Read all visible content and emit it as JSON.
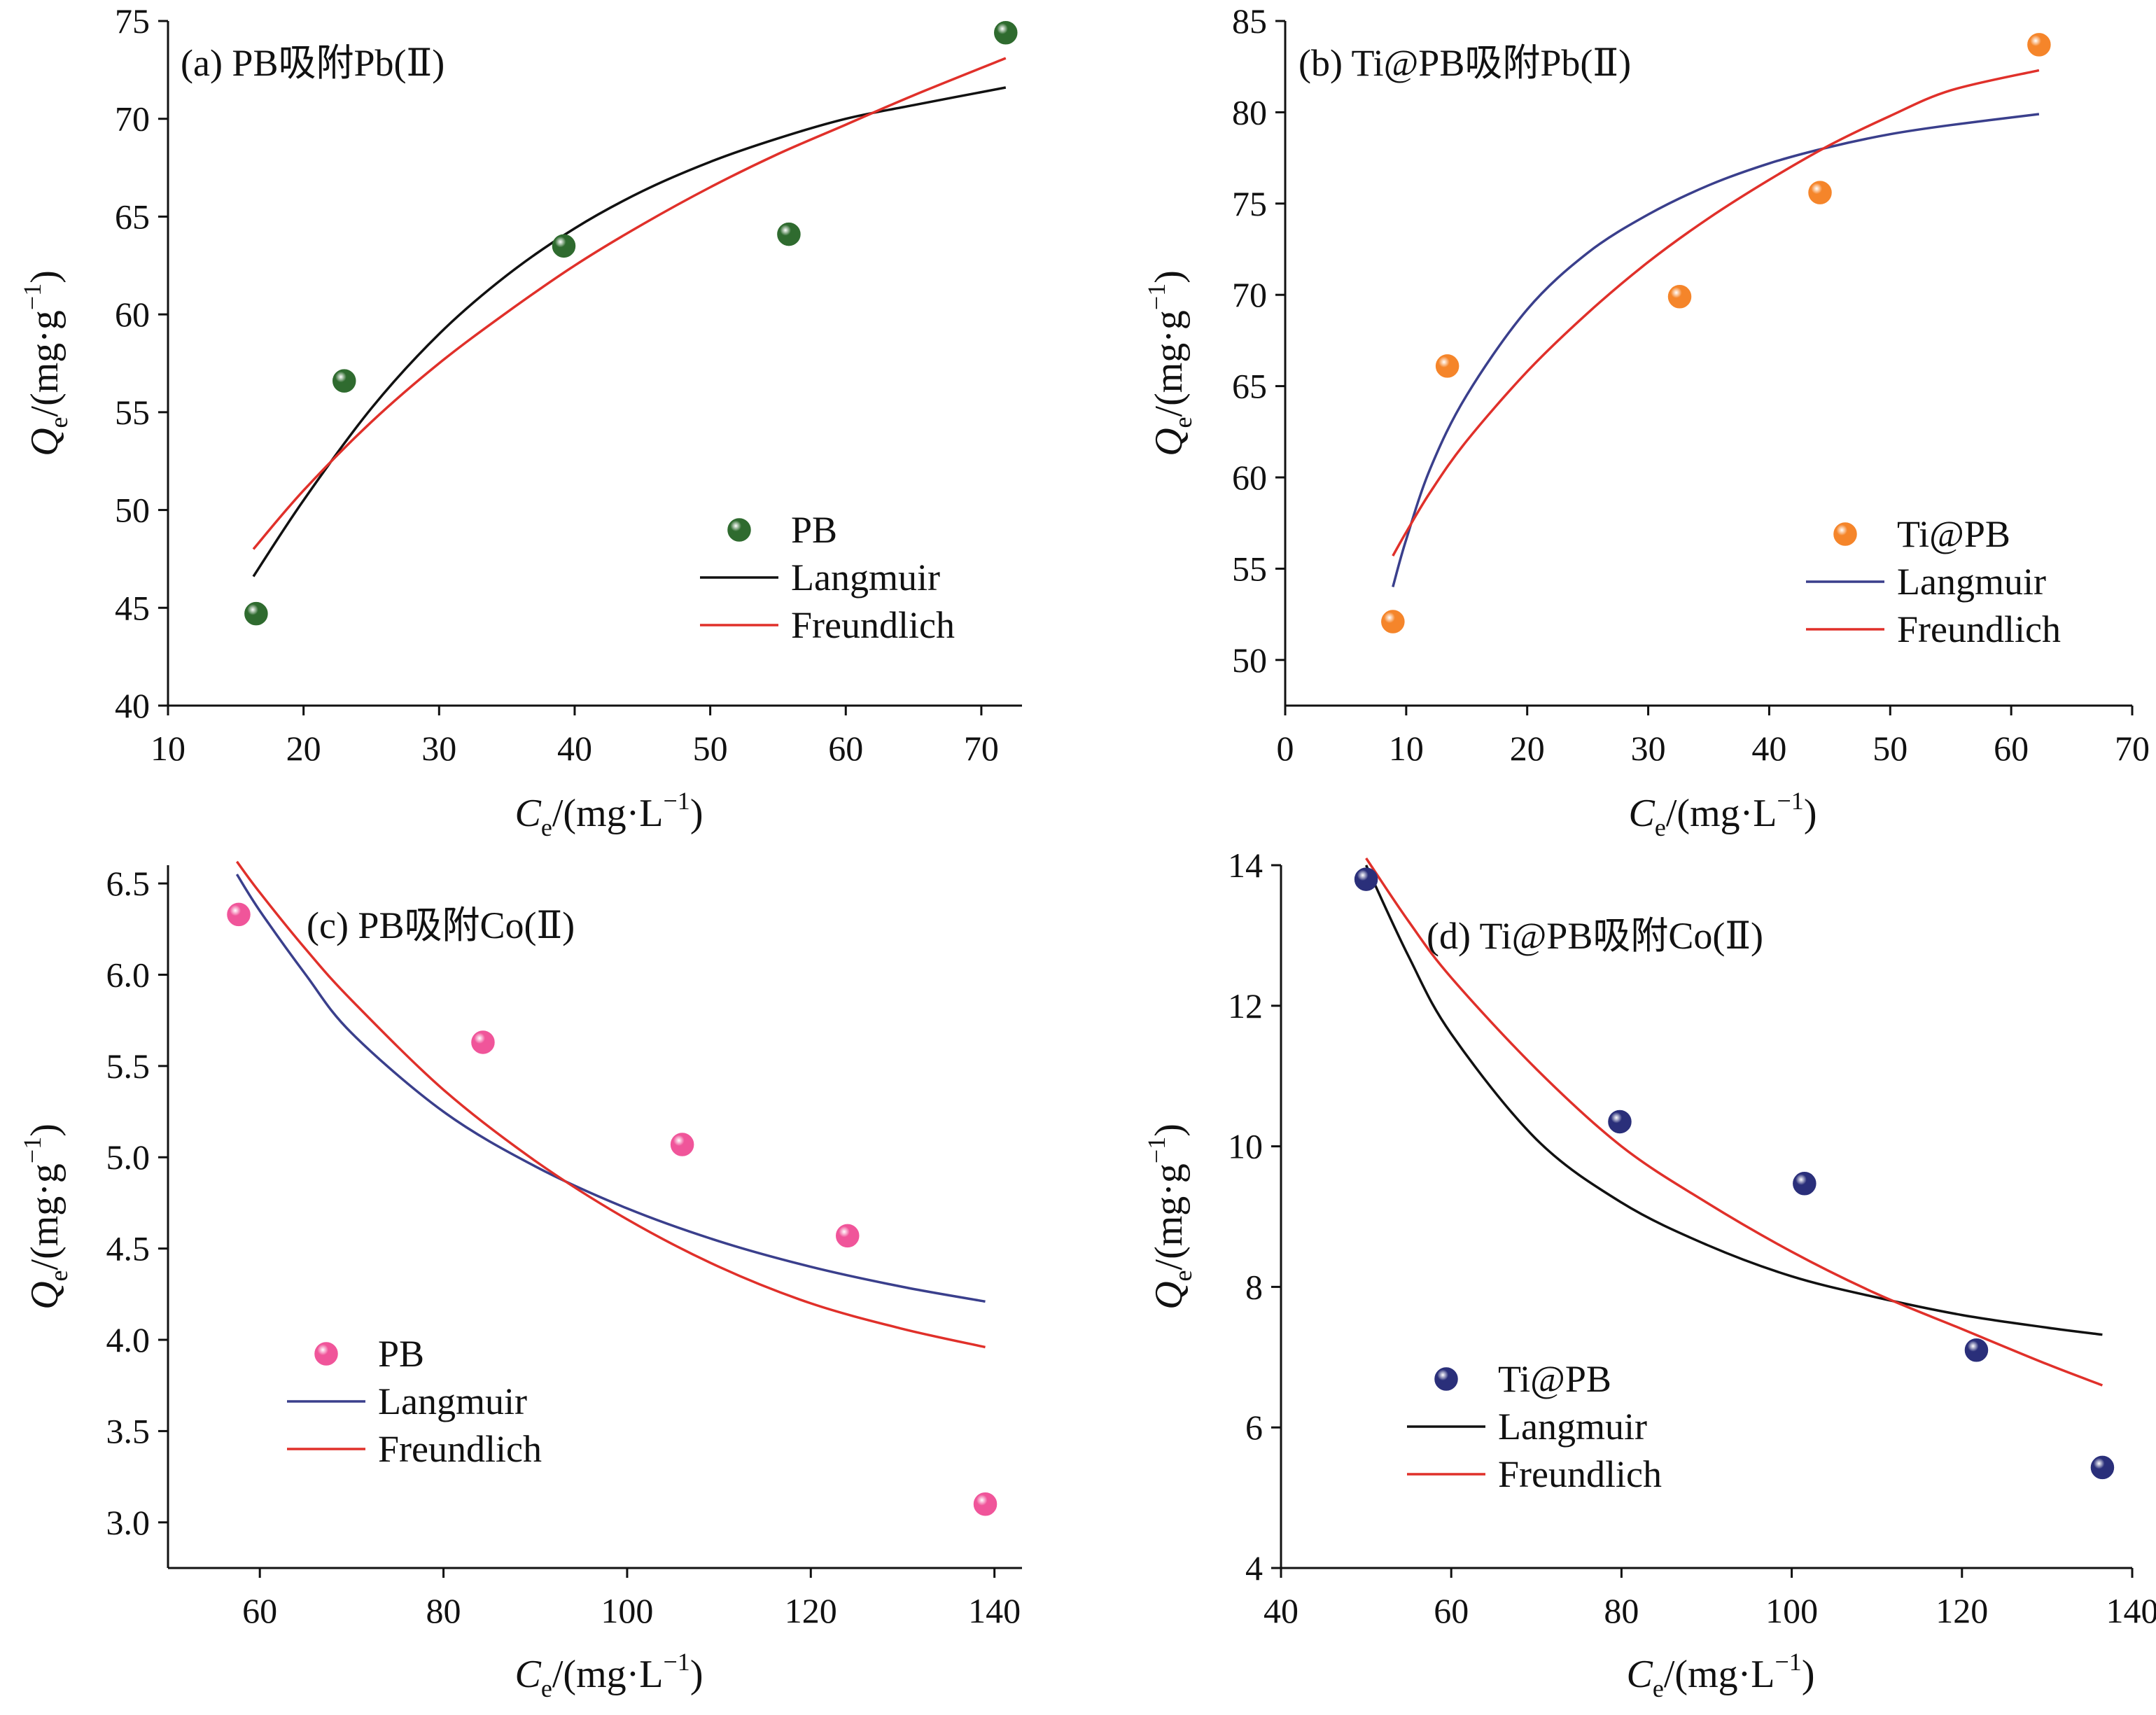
{
  "figure": {
    "colors": {
      "axis": "#111111",
      "langmuir_black": "#111111",
      "langmuir_navy": "#3a3f8c",
      "freundlich_red": "#e0302a",
      "pb_green": "#2f6b2f",
      "ti_orange": "#f5852a",
      "pb_pink": "#f0559a",
      "ti_navy": "#2a2f7a"
    }
  },
  "chart_data": [
    {
      "id": "a",
      "type": "scatter",
      "title": "(a)  PB吸附Pb(Ⅱ)",
      "xlabel_main": "C",
      "xlabel_sub": "e",
      "xlabel_unit": "/(mg·L",
      "xlabel_sup": "−1",
      "xlabel_close": ")",
      "ylabel_main": "Q",
      "ylabel_sub": "e",
      "ylabel_unit": "/(mg·g",
      "ylabel_sup": "−1",
      "ylabel_close": ")",
      "xlim": [
        10,
        73
      ],
      "ylim": [
        40,
        75
      ],
      "xticks": [
        10,
        20,
        30,
        40,
        50,
        60,
        70
      ],
      "yticks": [
        40,
        45,
        50,
        55,
        60,
        65,
        70,
        75
      ],
      "legend": [
        "PB",
        "Langmuir",
        "Freundlich"
      ],
      "legend_position": "bottom-right",
      "points": {
        "name": "PB",
        "color": "#2f6b2f",
        "x": [
          16.5,
          23.0,
          39.2,
          55.8,
          71.8
        ],
        "y": [
          44.7,
          56.6,
          63.5,
          64.1,
          74.4
        ]
      },
      "series": [
        {
          "name": "Langmuir",
          "color": "#111111",
          "x": [
            16.3,
            20,
            25,
            30,
            35,
            40,
            45,
            50,
            55,
            60,
            65,
            71.8
          ],
          "y": [
            46.6,
            50.5,
            55.2,
            59.0,
            62.0,
            64.4,
            66.3,
            67.8,
            69.0,
            70.0,
            70.7,
            71.6
          ]
        },
        {
          "name": "Freundlich",
          "color": "#e0302a",
          "x": [
            16.3,
            20,
            25,
            30,
            35,
            40,
            45,
            50,
            55,
            60,
            65,
            71.8
          ],
          "y": [
            48.0,
            51.0,
            54.5,
            57.5,
            60.1,
            62.5,
            64.6,
            66.5,
            68.2,
            69.7,
            71.2,
            73.1
          ]
        }
      ]
    },
    {
      "id": "b",
      "type": "scatter",
      "title": "(b)  Ti@PB吸附Pb(Ⅱ)",
      "xlabel_main": "C",
      "xlabel_sub": "e",
      "xlabel_unit": "/(mg·L",
      "xlabel_sup": "−1",
      "xlabel_close": ")",
      "ylabel_main": "Q",
      "ylabel_sub": "e",
      "ylabel_unit": "/(mg·g",
      "ylabel_sup": "−1",
      "ylabel_close": ")",
      "xlim": [
        0,
        70
      ],
      "ylim": [
        47.5,
        85
      ],
      "xticks": [
        0,
        10,
        20,
        30,
        40,
        50,
        60,
        70
      ],
      "yticks": [
        50,
        55,
        60,
        65,
        70,
        75,
        80,
        85
      ],
      "legend": [
        "Ti@PB",
        "Langmuir",
        "Freundlich"
      ],
      "legend_position": "bottom-right",
      "points": {
        "name": "Ti@PB",
        "color": "#f5852a",
        "x": [
          8.9,
          13.4,
          32.6,
          44.2,
          62.3
        ],
        "y": [
          52.1,
          66.1,
          69.9,
          75.6,
          83.7
        ]
      },
      "series": [
        {
          "name": "Langmuir",
          "color": "#3a3f8c",
          "x": [
            8.9,
            10,
            12,
            15,
            20,
            25,
            30,
            35,
            40,
            45,
            50,
            55,
            62.3
          ],
          "y": [
            54.0,
            56.6,
            60.5,
            64.5,
            69.2,
            72.3,
            74.4,
            76.0,
            77.2,
            78.1,
            78.8,
            79.3,
            79.9
          ]
        },
        {
          "name": "Freundlich",
          "color": "#e0302a",
          "x": [
            8.9,
            10,
            12,
            15,
            20,
            25,
            30,
            35,
            40,
            45,
            50,
            55,
            62.3
          ],
          "y": [
            55.7,
            57.0,
            59.2,
            62.0,
            65.8,
            69.0,
            71.8,
            74.2,
            76.3,
            78.2,
            79.8,
            81.2,
            82.3
          ]
        }
      ]
    },
    {
      "id": "c",
      "type": "scatter",
      "title": "(c)  PB吸附Co(Ⅱ)",
      "xlabel_main": "C",
      "xlabel_sub": "e",
      "xlabel_unit": "/(mg·L",
      "xlabel_sup": "−1",
      "xlabel_close": ")",
      "ylabel_main": "Q",
      "ylabel_sub": "e",
      "ylabel_unit": "/(mg·g",
      "ylabel_sup": "−1",
      "ylabel_close": ")",
      "xlim": [
        50,
        143
      ],
      "ylim": [
        2.75,
        6.6
      ],
      "xticks": [
        60,
        80,
        100,
        120,
        140
      ],
      "yticks": [
        3.0,
        3.5,
        4.0,
        4.5,
        5.0,
        5.5,
        6.0,
        6.5
      ],
      "ytick_decimals": 1,
      "legend": [
        "PB",
        "Langmuir",
        "Freundlich"
      ],
      "legend_position": "bottom-left",
      "points": {
        "name": "PB",
        "color": "#f0559a",
        "x": [
          57.7,
          84.3,
          106.0,
          124.0,
          139.0
        ],
        "y": [
          6.33,
          5.63,
          5.07,
          4.57,
          3.1
        ]
      },
      "series": [
        {
          "name": "Langmuir",
          "color": "#3a3f8c",
          "x": [
            57.5,
            60,
            65,
            70,
            80,
            90,
            100,
            110,
            120,
            130,
            139
          ],
          "y": [
            6.55,
            6.35,
            6.0,
            5.68,
            5.25,
            4.95,
            4.72,
            4.54,
            4.4,
            4.29,
            4.21
          ]
        },
        {
          "name": "Freundlich",
          "color": "#e0302a",
          "x": [
            57.5,
            60,
            65,
            70,
            80,
            90,
            100,
            110,
            120,
            130,
            139
          ],
          "y": [
            6.62,
            6.45,
            6.14,
            5.86,
            5.37,
            4.98,
            4.66,
            4.4,
            4.2,
            4.06,
            3.96
          ]
        }
      ]
    },
    {
      "id": "d",
      "type": "scatter",
      "title": "(d)  Ti@PB吸附Co(Ⅱ)",
      "xlabel_main": "C",
      "xlabel_sub": "e",
      "xlabel_unit": "/(mg·L",
      "xlabel_sup": "−1",
      "xlabel_close": ")",
      "ylabel_main": "Q",
      "ylabel_sub": "e",
      "ylabel_unit": "/(mg·g",
      "ylabel_sup": "−1",
      "ylabel_close": ")",
      "xlim": [
        40,
        140
      ],
      "ylim": [
        4,
        14
      ],
      "xticks": [
        40,
        60,
        80,
        100,
        120,
        140
      ],
      "yticks": [
        4,
        6,
        8,
        10,
        12,
        14
      ],
      "legend": [
        "Ti@PB",
        "Langmuir",
        "Freundlich"
      ],
      "legend_position": "bottom-left",
      "points": {
        "name": "Ti@PB",
        "color": "#2a2f7a",
        "x": [
          50.0,
          79.8,
          101.5,
          121.7,
          136.5
        ],
        "y": [
          13.8,
          10.35,
          9.47,
          7.1,
          5.43
        ]
      },
      "series": [
        {
          "name": "Langmuir",
          "color": "#111111",
          "x": [
            50,
            55,
            60,
            70,
            80,
            90,
            100,
            110,
            120,
            130,
            136.5
          ],
          "y": [
            14.0,
            12.7,
            11.6,
            10.1,
            9.2,
            8.6,
            8.15,
            7.85,
            7.6,
            7.42,
            7.32
          ]
        },
        {
          "name": "Freundlich",
          "color": "#e0302a",
          "x": [
            50,
            55,
            60,
            70,
            80,
            90,
            100,
            110,
            120,
            130,
            136.5
          ],
          "y": [
            14.1,
            13.2,
            12.4,
            11.1,
            10.0,
            9.2,
            8.5,
            7.9,
            7.4,
            6.9,
            6.6
          ]
        }
      ]
    }
  ]
}
